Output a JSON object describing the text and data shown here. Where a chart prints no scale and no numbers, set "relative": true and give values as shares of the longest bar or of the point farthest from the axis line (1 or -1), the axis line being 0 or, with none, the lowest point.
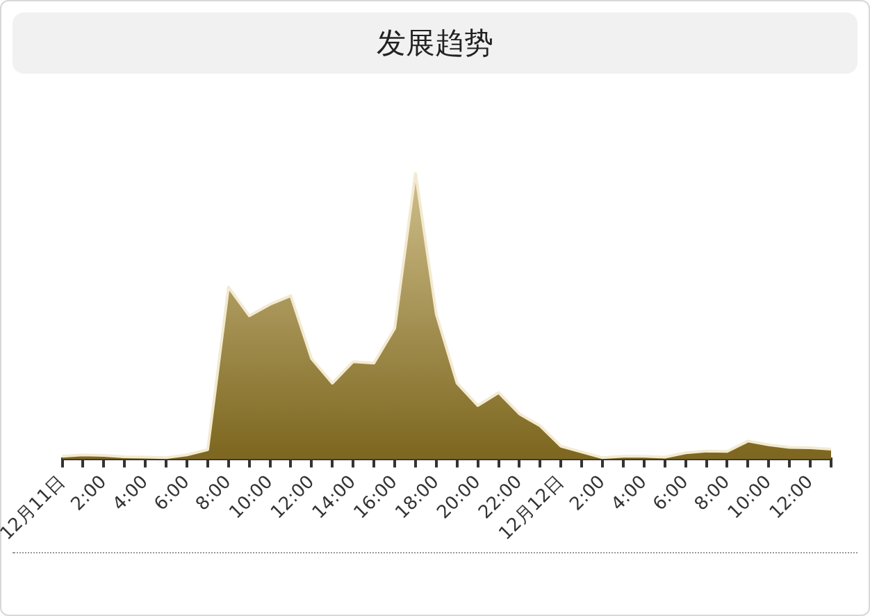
{
  "chart_data": {
    "type": "area",
    "title": "发展趋势",
    "relative": true,
    "categories": [
      "12月11日",
      null,
      "2:00",
      null,
      "4:00",
      null,
      "6:00",
      null,
      "8:00",
      null,
      "10:00",
      null,
      "12:00",
      null,
      "14:00",
      null,
      "16:00",
      null,
      "18:00",
      null,
      "20:00",
      null,
      "22:00",
      null,
      "12月12日",
      null,
      "2:00",
      null,
      "4:00",
      null,
      "6:00",
      null,
      "8:00",
      null,
      "10:00",
      null,
      "12:00",
      null
    ],
    "series": [
      {
        "color": "#a88a2c",
        "values": [
          0.01,
          0.015,
          0.013,
          0.008,
          0.007,
          0.005,
          0.015,
          0.033,
          0.6,
          0.5,
          0.54,
          0.57,
          0.35,
          0.265,
          0.34,
          0.335,
          0.456,
          1,
          0.506,
          0.265,
          0.187,
          0.232,
          0.158,
          0.116,
          0.045,
          0.025,
          0.005,
          0.01,
          0.01,
          0.007,
          0.022,
          0.028,
          0.027,
          0.063,
          0.05,
          0.041,
          0.04,
          0.035
        ]
      }
    ],
    "grid": false,
    "legend": false
  }
}
